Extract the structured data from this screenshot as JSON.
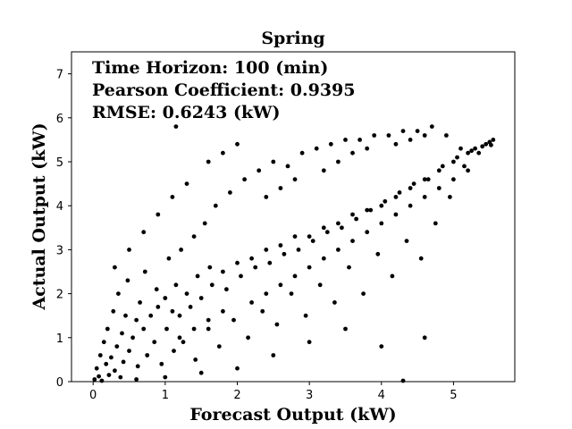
{
  "chart_data": {
    "type": "scatter",
    "title": "Spring",
    "xlabel": "Forecast Output (kW)",
    "ylabel": "Actual Output (kW)",
    "xlim": [
      -0.3,
      5.85
    ],
    "ylim": [
      0,
      7.5
    ],
    "xticks": [
      "0",
      "1",
      "2",
      "3",
      "4",
      "5"
    ],
    "yticks": [
      "0",
      "1",
      "2",
      "3",
      "4",
      "5",
      "6",
      "7"
    ],
    "grid": false,
    "legend": "none",
    "marker_color": "#000000",
    "annotations": [
      "Time Horizon: 100 (min)",
      "Pearson Coefficient: 0.9395",
      "RMSE: 0.6243 (kW)"
    ],
    "points": [
      [
        0.02,
        0.05
      ],
      [
        0.05,
        0.3
      ],
      [
        0.08,
        0.12
      ],
      [
        0.1,
        0.6
      ],
      [
        0.12,
        0.02
      ],
      [
        0.15,
        0.9
      ],
      [
        0.18,
        0.4
      ],
      [
        0.2,
        1.2
      ],
      [
        0.22,
        0.15
      ],
      [
        0.25,
        0.55
      ],
      [
        0.28,
        1.6
      ],
      [
        0.3,
        0.25
      ],
      [
        0.33,
        0.8
      ],
      [
        0.35,
        2.0
      ],
      [
        0.38,
        0.1
      ],
      [
        0.4,
        1.1
      ],
      [
        0.42,
        0.45
      ],
      [
        0.45,
        1.5
      ],
      [
        0.48,
        2.3
      ],
      [
        0.5,
        0.7
      ],
      [
        0.55,
        1.0
      ],
      [
        0.6,
        1.4
      ],
      [
        0.62,
        0.35
      ],
      [
        0.65,
        1.8
      ],
      [
        0.7,
        1.2
      ],
      [
        0.72,
        2.5
      ],
      [
        0.75,
        0.6
      ],
      [
        0.8,
        1.5
      ],
      [
        0.85,
        0.9
      ],
      [
        0.88,
        2.1
      ],
      [
        0.9,
        1.7
      ],
      [
        0.95,
        0.4
      ],
      [
        1.0,
        1.9
      ],
      [
        1.02,
        1.2
      ],
      [
        1.05,
        2.8
      ],
      [
        1.1,
        1.6
      ],
      [
        1.12,
        0.7
      ],
      [
        1.15,
        2.2
      ],
      [
        1.2,
        1.5
      ],
      [
        1.22,
        3.0
      ],
      [
        1.25,
        0.9
      ],
      [
        1.3,
        2.0
      ],
      [
        1.35,
        1.7
      ],
      [
        1.4,
        3.3
      ],
      [
        1.42,
        0.5
      ],
      [
        1.45,
        2.4
      ],
      [
        1.5,
        1.9
      ],
      [
        1.55,
        3.6
      ],
      [
        1.6,
        1.2
      ],
      [
        1.62,
        2.6
      ],
      [
        1.65,
        2.2
      ],
      [
        1.7,
        4.0
      ],
      [
        1.75,
        0.8
      ],
      [
        1.8,
        2.5
      ],
      [
        1.85,
        2.1
      ],
      [
        1.9,
        4.3
      ],
      [
        1.95,
        1.4
      ],
      [
        2.0,
        2.7
      ],
      [
        2.05,
        2.4
      ],
      [
        2.1,
        4.6
      ],
      [
        2.15,
        1.0
      ],
      [
        2.2,
        2.8
      ],
      [
        2.25,
        2.6
      ],
      [
        2.3,
        4.8
      ],
      [
        2.35,
        1.6
      ],
      [
        2.4,
        3.0
      ],
      [
        2.45,
        2.7
      ],
      [
        2.5,
        5.0
      ],
      [
        2.55,
        1.3
      ],
      [
        2.6,
        3.1
      ],
      [
        2.65,
        2.9
      ],
      [
        2.7,
        4.9
      ],
      [
        2.75,
        2.0
      ],
      [
        2.8,
        3.3
      ],
      [
        2.85,
        3.0
      ],
      [
        2.9,
        5.2
      ],
      [
        2.95,
        1.5
      ],
      [
        3.0,
        3.3
      ],
      [
        3.05,
        3.2
      ],
      [
        3.1,
        5.3
      ],
      [
        3.15,
        2.2
      ],
      [
        3.2,
        3.5
      ],
      [
        3.25,
        3.4
      ],
      [
        3.3,
        5.4
      ],
      [
        3.35,
        1.8
      ],
      [
        3.4,
        3.6
      ],
      [
        3.45,
        3.5
      ],
      [
        3.5,
        5.5
      ],
      [
        3.55,
        2.6
      ],
      [
        3.6,
        3.8
      ],
      [
        3.65,
        3.7
      ],
      [
        3.7,
        5.5
      ],
      [
        3.75,
        2.0
      ],
      [
        3.8,
        3.9
      ],
      [
        3.85,
        3.9
      ],
      [
        3.9,
        5.6
      ],
      [
        3.95,
        2.9
      ],
      [
        4.0,
        4.0
      ],
      [
        4.05,
        4.1
      ],
      [
        4.1,
        5.6
      ],
      [
        4.15,
        2.4
      ],
      [
        4.2,
        4.2
      ],
      [
        4.25,
        4.3
      ],
      [
        4.3,
        5.7
      ],
      [
        4.35,
        3.2
      ],
      [
        4.4,
        4.4
      ],
      [
        4.45,
        4.5
      ],
      [
        4.5,
        5.7
      ],
      [
        4.55,
        2.8
      ],
      [
        4.6,
        4.6
      ],
      [
        4.65,
        4.6
      ],
      [
        4.7,
        5.8
      ],
      [
        4.75,
        3.6
      ],
      [
        4.8,
        4.8
      ],
      [
        4.85,
        4.9
      ],
      [
        4.9,
        5.6
      ],
      [
        4.95,
        4.2
      ],
      [
        5.0,
        5.0
      ],
      [
        5.05,
        5.1
      ],
      [
        5.1,
        5.3
      ],
      [
        5.15,
        4.9
      ],
      [
        5.2,
        5.2
      ],
      [
        5.25,
        5.25
      ],
      [
        5.3,
        5.3
      ],
      [
        5.35,
        5.2
      ],
      [
        5.4,
        5.35
      ],
      [
        5.45,
        5.4
      ],
      [
        5.5,
        5.45
      ],
      [
        5.55,
        5.5
      ],
      [
        5.52,
        5.38
      ],
      [
        0.6,
        0.05
      ],
      [
        1.0,
        0.1
      ],
      [
        1.5,
        0.2
      ],
      [
        2.0,
        0.3
      ],
      [
        2.5,
        0.6
      ],
      [
        3.0,
        0.9
      ],
      [
        3.5,
        1.2
      ],
      [
        4.0,
        0.8
      ],
      [
        4.3,
        0.02
      ],
      [
        4.6,
        1.0
      ],
      [
        0.3,
        2.6
      ],
      [
        0.5,
        3.0
      ],
      [
        0.7,
        3.4
      ],
      [
        0.9,
        3.8
      ],
      [
        1.1,
        4.2
      ],
      [
        1.15,
        5.8
      ],
      [
        1.3,
        4.5
      ],
      [
        1.6,
        5.0
      ],
      [
        1.8,
        5.2
      ],
      [
        2.0,
        5.4
      ],
      [
        2.4,
        4.2
      ],
      [
        2.6,
        4.4
      ],
      [
        2.8,
        4.6
      ],
      [
        3.2,
        4.8
      ],
      [
        3.4,
        5.0
      ],
      [
        3.6,
        5.2
      ],
      [
        3.8,
        5.3
      ],
      [
        4.2,
        5.4
      ],
      [
        4.4,
        5.5
      ],
      [
        4.6,
        5.6
      ],
      [
        2.2,
        1.8
      ],
      [
        2.4,
        2.0
      ],
      [
        2.6,
        2.2
      ],
      [
        2.8,
        2.4
      ],
      [
        3.0,
        2.6
      ],
      [
        3.2,
        2.8
      ],
      [
        3.4,
        3.0
      ],
      [
        3.6,
        3.2
      ],
      [
        3.8,
        3.4
      ],
      [
        4.0,
        3.6
      ],
      [
        4.2,
        3.8
      ],
      [
        4.4,
        4.0
      ],
      [
        4.6,
        4.2
      ],
      [
        4.8,
        4.4
      ],
      [
        5.0,
        4.6
      ],
      [
        5.2,
        4.8
      ],
      [
        1.2,
        1.0
      ],
      [
        1.4,
        1.2
      ],
      [
        1.6,
        1.4
      ],
      [
        1.8,
        1.6
      ]
    ]
  }
}
